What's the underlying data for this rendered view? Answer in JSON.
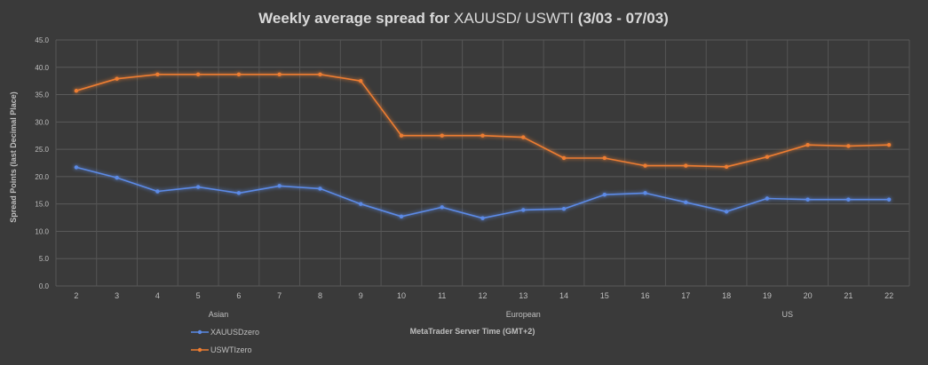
{
  "chart_data": {
    "type": "line",
    "title_bold_prefix": "Weekly average spread for ",
    "title_symbols": "XAUUSD/ USWTI",
    "title_bold_suffix": " (3/03 - 07/03)",
    "xlabel": "MetaTrader Server Time (GMT+2)",
    "ylabel": "Spread Points  (last Decimal Place)",
    "x": [
      2,
      3,
      4,
      5,
      6,
      7,
      8,
      9,
      10,
      11,
      12,
      13,
      14,
      15,
      16,
      17,
      18,
      19,
      20,
      21,
      22
    ],
    "ylim": [
      0,
      45
    ],
    "yticks": [
      "0.0",
      "5.0",
      "10.0",
      "15.0",
      "20.0",
      "25.0",
      "30.0",
      "35.0",
      "40.0",
      "45.0"
    ],
    "sessions": [
      {
        "label": "Asian",
        "at": 5.5
      },
      {
        "label": "European",
        "at": 13.0
      },
      {
        "label": "US",
        "at": 19.5
      }
    ],
    "grid": true,
    "legend_position": "bottom-left",
    "series": [
      {
        "name": "XAUUSDzero",
        "color": "#5b8ae6",
        "values": [
          21.7,
          19.8,
          17.3,
          18.1,
          17.0,
          18.3,
          17.8,
          15.0,
          12.7,
          14.4,
          12.4,
          13.9,
          14.1,
          16.7,
          17.0,
          15.3,
          13.6,
          16.0,
          15.8,
          15.8,
          15.8
        ]
      },
      {
        "name": "USWTIzero",
        "color": "#ed7d31",
        "values": [
          35.7,
          37.9,
          38.7,
          38.7,
          38.7,
          38.7,
          38.7,
          37.5,
          27.5,
          27.5,
          27.5,
          27.2,
          23.4,
          23.4,
          22.0,
          22.0,
          21.8,
          23.6,
          25.8,
          25.6,
          25.8
        ]
      }
    ]
  }
}
